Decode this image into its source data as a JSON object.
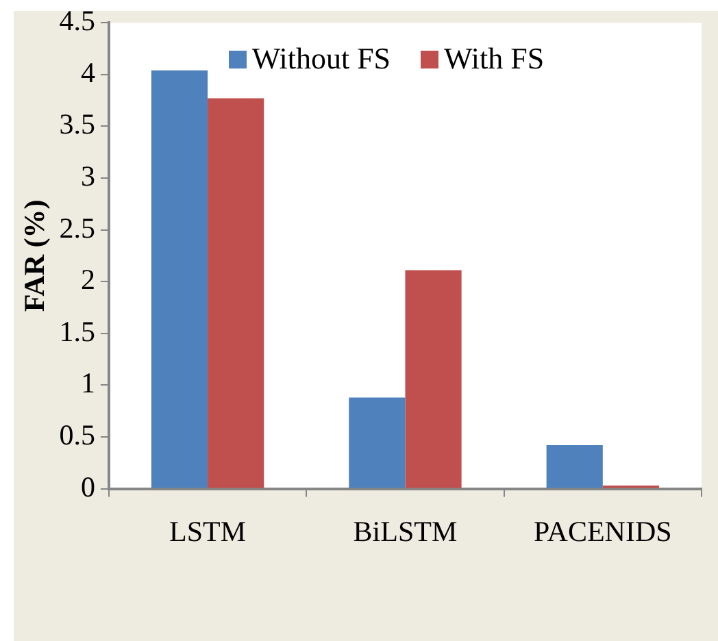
{
  "chart_data": {
    "type": "bar",
    "ylabel": "FAR (%)",
    "categories": [
      "LSTM",
      "BiLSTM",
      "PACENIDS"
    ],
    "series": [
      {
        "name": "Without FS",
        "color": "#4f81bd",
        "values": [
          4.04,
          0.88,
          0.42
        ]
      },
      {
        "name": "With FS",
        "color": "#c0504d",
        "values": [
          3.77,
          2.11,
          0.03
        ]
      }
    ],
    "ylim": [
      0,
      4.5
    ],
    "yticks": [
      0,
      0.5,
      1,
      1.5,
      2,
      2.5,
      3,
      3.5,
      4,
      4.5
    ],
    "grid": false,
    "legend": "top"
  }
}
